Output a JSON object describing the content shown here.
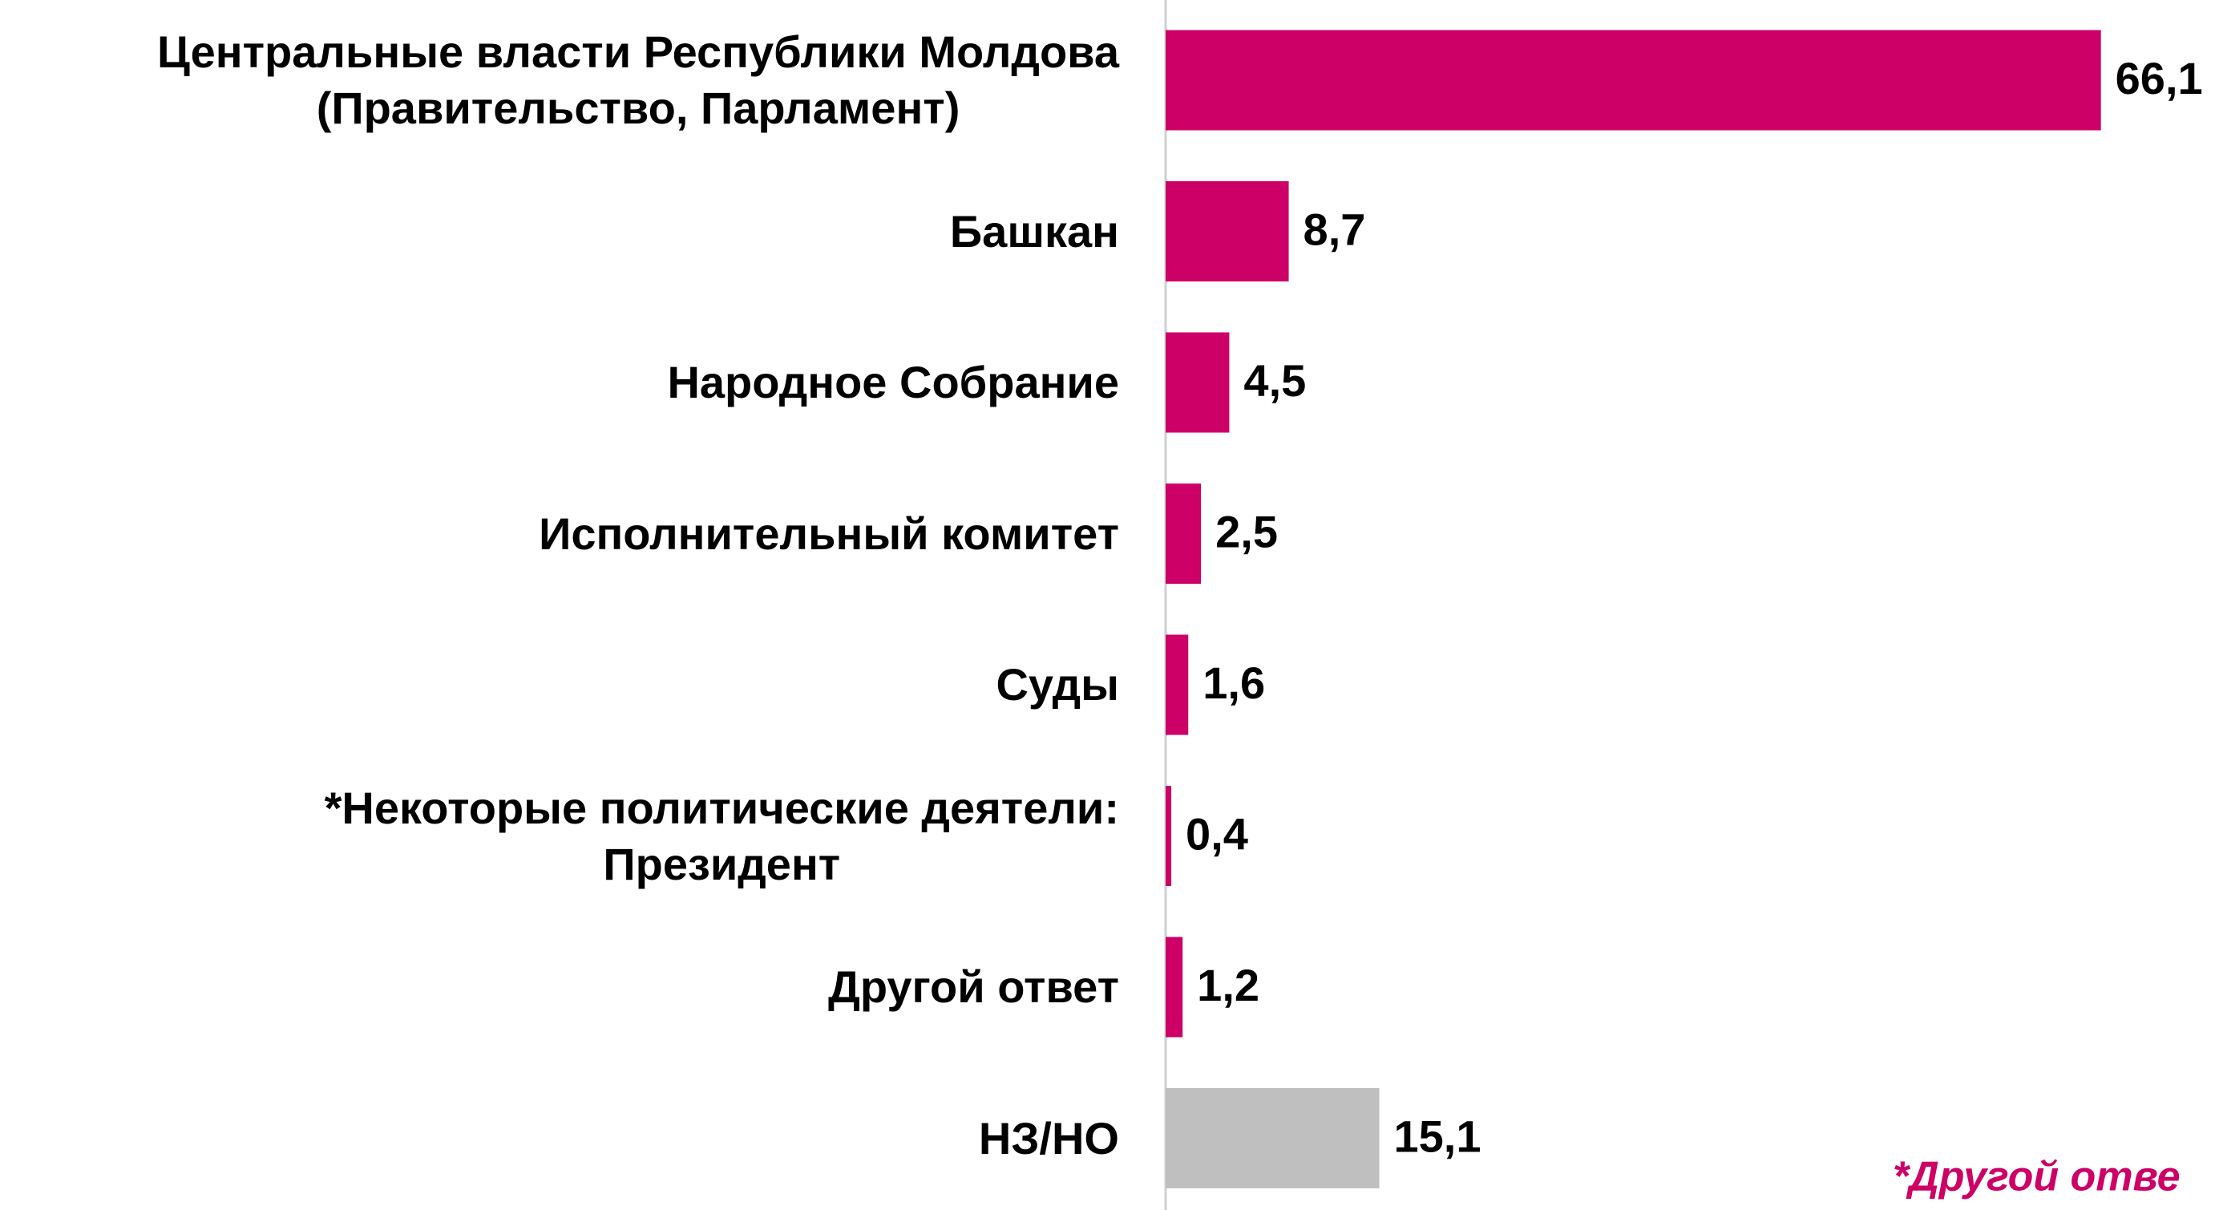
{
  "chart_data": {
    "type": "hbar",
    "categories": [
      "Центральные власти Республики Молдова\n(Правительство, Парламент)",
      "Башкан",
      "Народное Собрание",
      "Исполнительный комитет",
      "Суды",
      "*Некоторые политические деятели:\nПрезидент",
      "Другой ответ",
      "НЗ/НО"
    ],
    "values": [
      66.1,
      8.7,
      4.5,
      2.5,
      1.6,
      0.4,
      1.2,
      15.1
    ],
    "value_labels": [
      "66,1",
      "8,7",
      "4,5",
      "2,5",
      "1,6",
      "0,4",
      "1,2",
      "15,1"
    ],
    "colors": [
      "#cc0066",
      "#cc0066",
      "#cc0066",
      "#cc0066",
      "#cc0066",
      "#cc0066",
      "#cc0066",
      "#bfbfbf"
    ],
    "annotation": "*Другой отве"
  }
}
